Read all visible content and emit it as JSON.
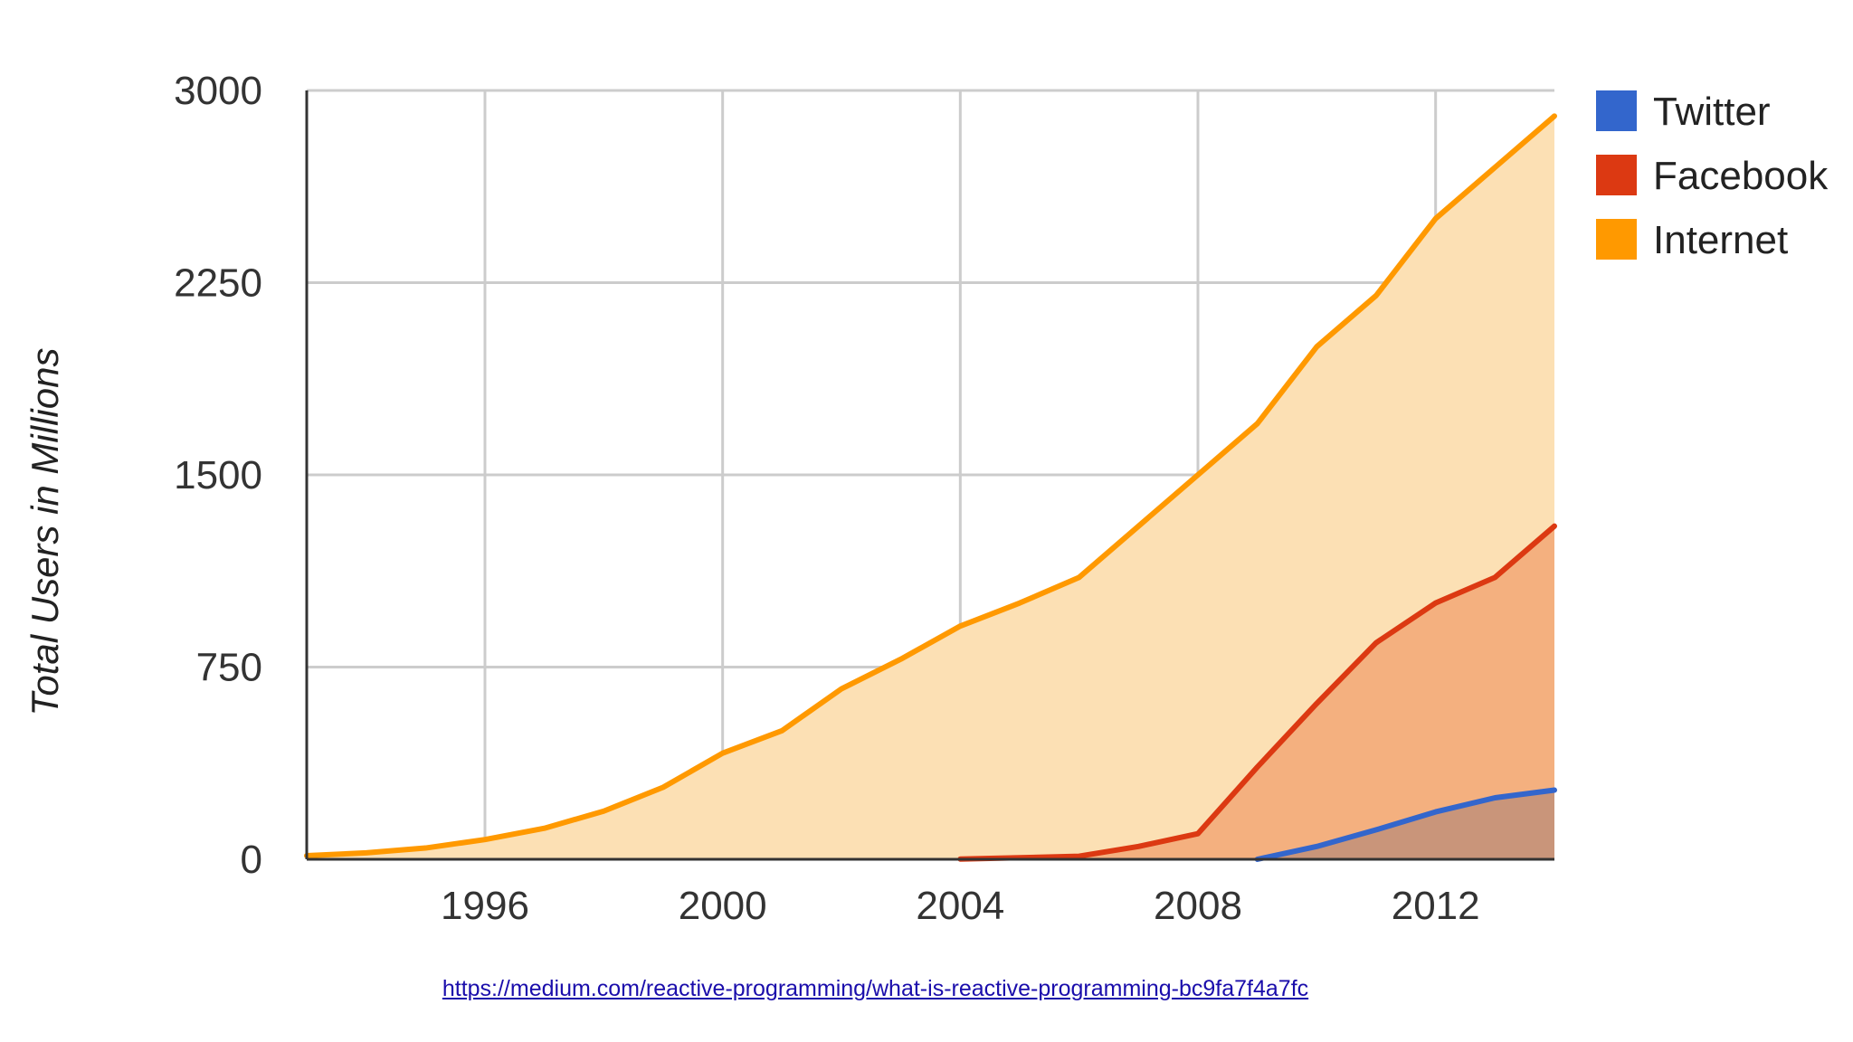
{
  "chart_data": {
    "type": "area",
    "title": "",
    "xlabel": "",
    "ylabel": "Total Users in Millions",
    "xlim": [
      1993,
      2014
    ],
    "ylim": [
      0,
      3000
    ],
    "x_ticks": [
      "1996",
      "2000",
      "2004",
      "2008",
      "2012"
    ],
    "y_ticks": [
      "0",
      "750",
      "1500",
      "2250",
      "3000"
    ],
    "grid": true,
    "legend_position": "right",
    "series": [
      {
        "name": "Twitter",
        "color": "#3366cc",
        "fill": "#c9957a",
        "x": [
          2009,
          2010,
          2011,
          2012,
          2013,
          2014
        ],
        "values": [
          0,
          50,
          115,
          185,
          240,
          270
        ]
      },
      {
        "name": "Facebook",
        "color": "#dc3912",
        "fill": "#f4b07f",
        "x": [
          2004,
          2005,
          2006,
          2007,
          2008,
          2009,
          2010,
          2011,
          2012,
          2013,
          2014
        ],
        "values": [
          1,
          6,
          12,
          50,
          100,
          360,
          608,
          845,
          1000,
          1100,
          1300
        ]
      },
      {
        "name": "Internet",
        "color": "#ff9900",
        "fill": "#fce0b4",
        "x": [
          1993,
          1994,
          1995,
          1996,
          1997,
          1998,
          1999,
          2000,
          2001,
          2002,
          2003,
          2004,
          2005,
          2006,
          2007,
          2008,
          2009,
          2010,
          2011,
          2012,
          2013,
          2014
        ],
        "values": [
          14,
          25,
          44,
          77,
          121,
          188,
          281,
          414,
          502,
          665,
          781,
          910,
          1000,
          1100,
          1300,
          1500,
          1700,
          2000,
          2200,
          2500,
          2700,
          2900
        ]
      }
    ]
  },
  "footer": {
    "source_url": "https://medium.com/reactive-programming/what-is-reactive-programming-bc9fa7f4a7fc"
  }
}
